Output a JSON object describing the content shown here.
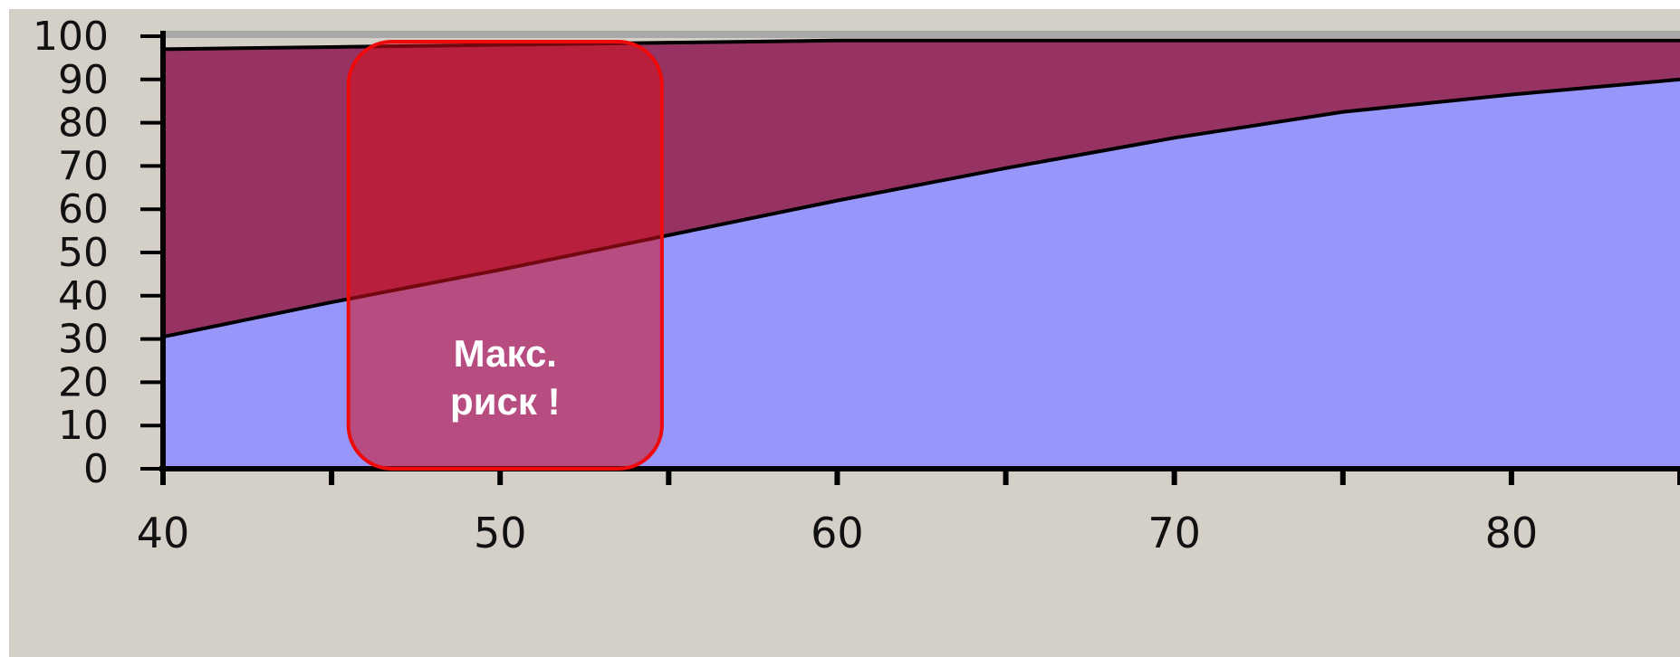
{
  "chart_data": {
    "type": "area",
    "title": "",
    "xlabel": "",
    "ylabel": "",
    "xlim": [
      40,
      85
    ],
    "ylim": [
      0,
      100
    ],
    "x_ticks": [
      "40",
      "50",
      "60",
      "70",
      "80"
    ],
    "y_ticks": [
      "0",
      "10",
      "20",
      "30",
      "40",
      "50",
      "60",
      "70",
      "80",
      "90",
      "100"
    ],
    "grid": false,
    "legend": "none",
    "series": [
      {
        "color": "#9797fb",
        "x": [
          40,
          45,
          50,
          55,
          60,
          65,
          70,
          75,
          80,
          85
        ],
        "y": [
          30.5,
          38.5,
          46,
          54,
          62,
          69.5,
          76.5,
          82.5,
          86.5,
          90
        ]
      },
      {
        "color": "#973363",
        "x": [
          40,
          45,
          50,
          55,
          60,
          65,
          70,
          75,
          80,
          85
        ],
        "y": [
          97,
          97.5,
          98,
          98.5,
          99,
          99,
          99,
          99,
          99,
          99
        ]
      }
    ],
    "annotation": {
      "text_line1": "Макс.",
      "text_line2": "риск !",
      "x_range": [
        45.5,
        54.8
      ],
      "fill": "#d20f1e",
      "stroke": "#ee0a0a"
    }
  },
  "colors": {
    "background": "#d4d0c8",
    "axis": "#000000",
    "top_band": "#a9a9a9"
  }
}
